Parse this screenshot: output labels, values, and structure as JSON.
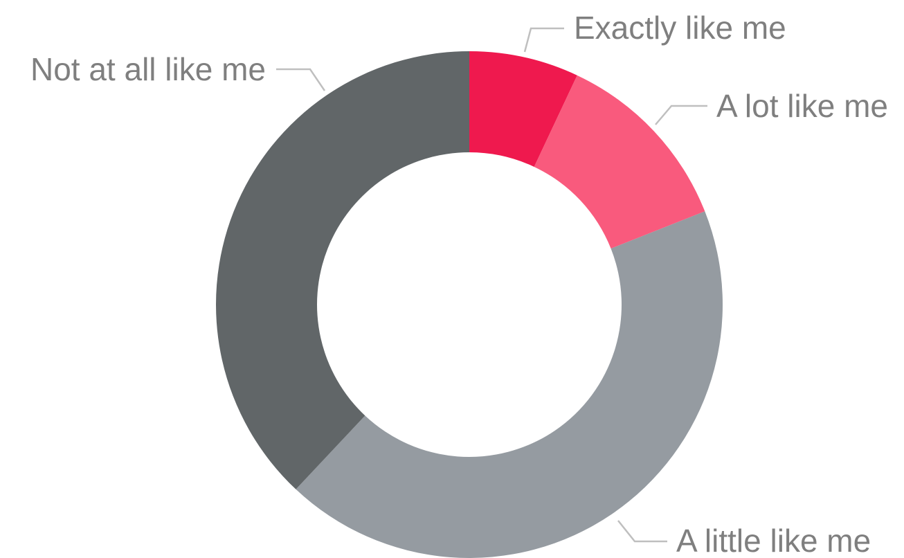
{
  "chart_data": {
    "type": "pie",
    "variant": "donut",
    "legend": "none",
    "slices": [
      {
        "label": "Exactly like me",
        "value": 7,
        "color": "#ef194e"
      },
      {
        "label": "A lot like me",
        "value": 12,
        "color": "#f95a7d"
      },
      {
        "label": "A little like me",
        "value": 43,
        "color": "#959ba1"
      },
      {
        "label": "Not at all like me",
        "value": 38,
        "color": "#616668"
      }
    ]
  }
}
